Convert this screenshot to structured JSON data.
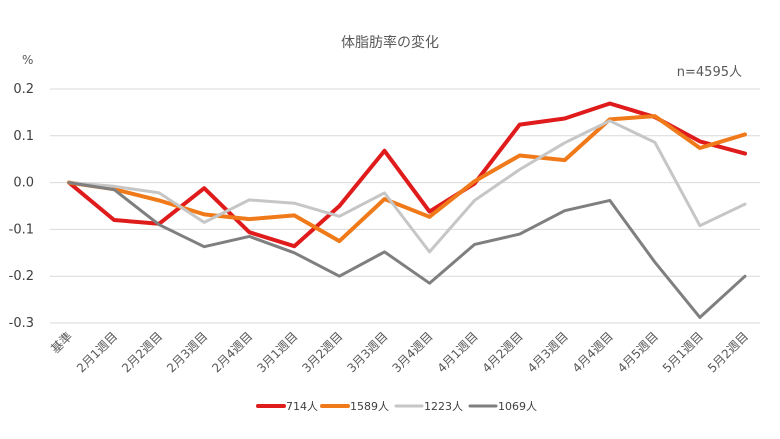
{
  "chart_data": {
    "type": "line",
    "title": "体脂肪率の変化",
    "ylabel": "%",
    "annotation": "n=4595人",
    "categories": [
      "基準",
      "2月1週目",
      "2月2週目",
      "2月3週目",
      "2月4週目",
      "3月1週目",
      "3月2週目",
      "3月3週目",
      "3月4週目",
      "4月1週目",
      "4月2週目",
      "4月3週目",
      "4月4週目",
      "4月5週目",
      "5月1週目",
      "5月2週目"
    ],
    "ylim": [
      -0.3,
      0.2
    ],
    "yticks": [
      "0.2",
      "0.1",
      "0.0",
      "-0.1",
      "-0.2",
      "-0.3"
    ],
    "grid": true,
    "legend_position": "bottom",
    "series": [
      {
        "name": "714人",
        "color": "#e01b1b",
        "width": 4,
        "values": [
          0,
          -0.08,
          -0.088,
          -0.012,
          -0.106,
          -0.136,
          -0.05,
          0.068,
          -0.062,
          -0.002,
          0.124,
          0.137,
          0.169,
          0.14,
          0.088,
          0.062
        ]
      },
      {
        "name": "1589人",
        "color": "#f07a1a",
        "width": 4,
        "values": [
          0,
          -0.014,
          -0.038,
          -0.068,
          -0.078,
          -0.07,
          -0.125,
          -0.035,
          -0.073,
          0.003,
          0.058,
          0.048,
          0.135,
          0.142,
          0.074,
          0.103
        ]
      },
      {
        "name": "1223人",
        "color": "#c6c6c6",
        "width": 3,
        "values": [
          0,
          -0.008,
          -0.022,
          -0.085,
          -0.037,
          -0.044,
          -0.072,
          -0.022,
          -0.148,
          -0.038,
          0.028,
          0.085,
          0.132,
          0.086,
          -0.092,
          -0.046
        ]
      },
      {
        "name": "1069人",
        "color": "#7f7f7f",
        "width": 3,
        "values": [
          0,
          -0.015,
          -0.09,
          -0.137,
          -0.115,
          -0.15,
          -0.2,
          -0.148,
          -0.215,
          -0.132,
          -0.11,
          -0.06,
          -0.038,
          -0.17,
          -0.288,
          -0.2
        ]
      }
    ]
  }
}
